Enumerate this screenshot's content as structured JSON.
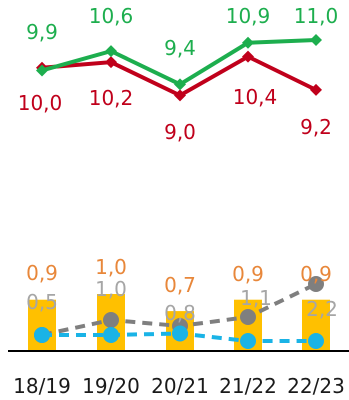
{
  "chart_data": {
    "type": "bar",
    "categories": [
      "18/19",
      "19/20",
      "20/21",
      "21/22",
      "22/23"
    ],
    "colors": {
      "green_line": "#1DAE4E",
      "red_line": "#C0001B",
      "bars": "#FFC000",
      "gray_dashed": "#7F7F7F",
      "blue_dashed": "#1AB3E6",
      "bar_labels": "#E8873A",
      "gray_labels": "#A6A6A6",
      "axis_labels": "#1A1A1A"
    },
    "top_series": [
      {
        "key": "green",
        "values": [
          9.9,
          10.6,
          9.4,
          10.9,
          11.0
        ],
        "labels": [
          "9,9",
          "10,6",
          "9,4",
          "10,9",
          "11,0"
        ]
      },
      {
        "key": "red",
        "values": [
          10.0,
          10.2,
          9.0,
          10.4,
          9.2
        ],
        "labels": [
          "10,0",
          "10,2",
          "9,0",
          "10,4",
          "9,2"
        ]
      }
    ],
    "bars": {
      "values": [
        0.9,
        1.0,
        0.7,
        0.9,
        0.9
      ],
      "labels": [
        "0,9",
        "1,0",
        "0,7",
        "0,9",
        "0,9"
      ]
    },
    "gray_series": {
      "values": [
        0.5,
        1.0,
        0.8,
        1.1,
        2.2
      ],
      "labels": [
        "0,5",
        "1,0",
        "0,8",
        "1,1",
        "2,2"
      ]
    },
    "blue_series": {
      "values": [
        0.5,
        0.5,
        0.55,
        0.3,
        0.3
      ]
    }
  }
}
